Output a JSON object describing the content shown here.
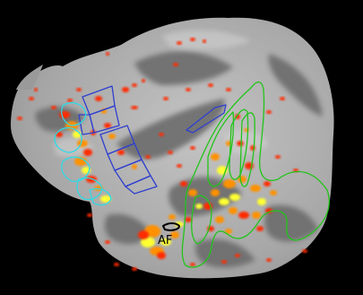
{
  "figure": {
    "background": "#000000",
    "cortex_colors": {
      "gyrus": "#a9a9a9",
      "sulcus": "#6c6c6c"
    },
    "activation_colors": {
      "low": "#ff2a00",
      "mid": "#ff9100",
      "high": "#ffff33"
    },
    "roi_outline_colors": {
      "blue_group": "#2f3fcf",
      "cyan_group": "#30d9e6",
      "green_group": "#22c41a",
      "black_roi": "#000000"
    },
    "roi_label": "AF"
  }
}
